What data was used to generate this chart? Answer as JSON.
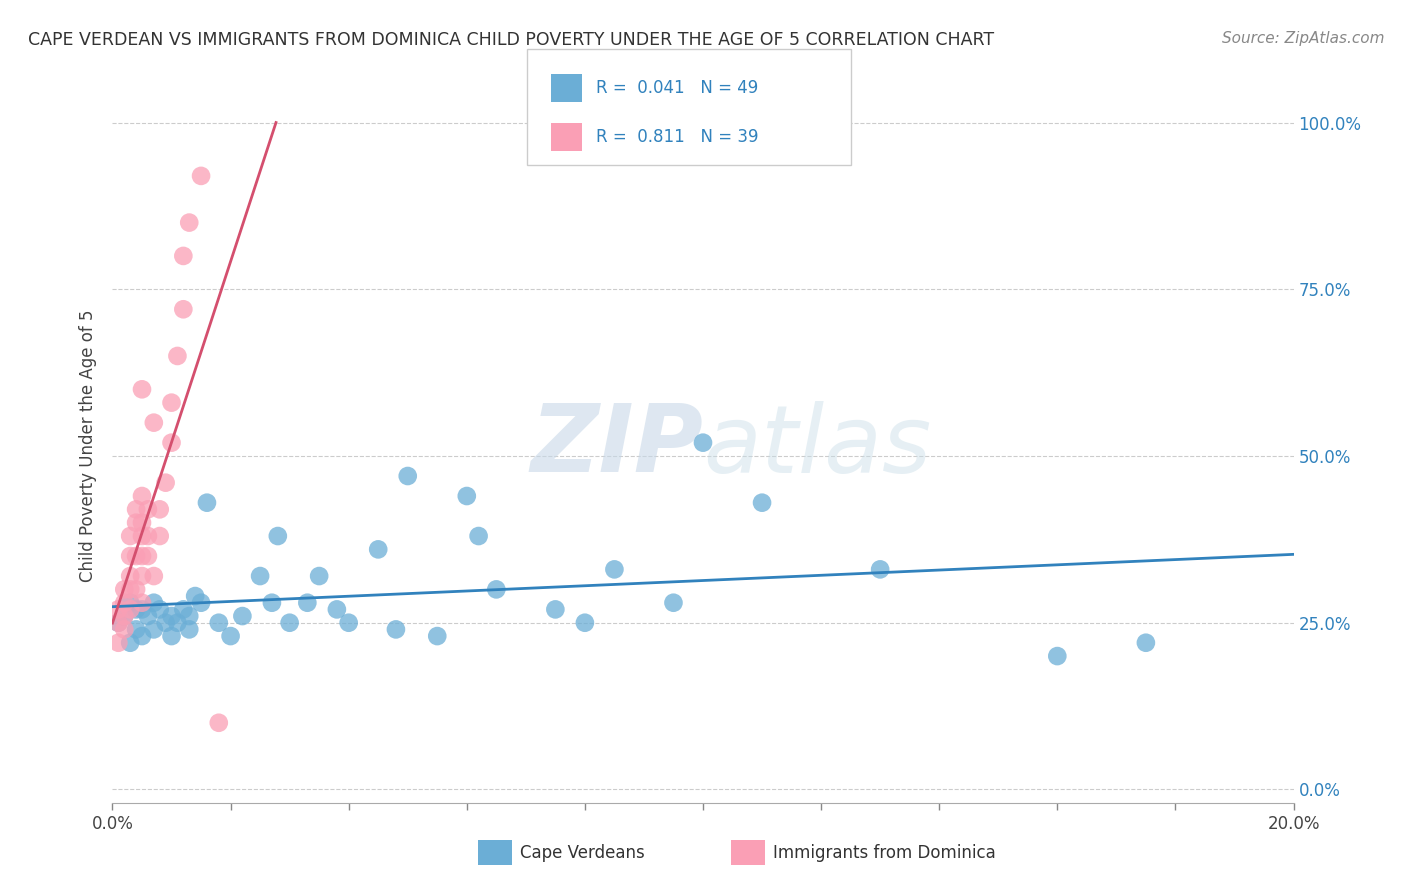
{
  "title": "CAPE VERDEAN VS IMMIGRANTS FROM DOMINICA CHILD POVERTY UNDER THE AGE OF 5 CORRELATION CHART",
  "source": "Source: ZipAtlas.com",
  "ylabel": "Child Poverty Under the Age of 5",
  "xlim": [
    0.0,
    0.2
  ],
  "ylim": [
    -0.02,
    1.05
  ],
  "ytick_values": [
    0.0,
    0.25,
    0.5,
    0.75,
    1.0
  ],
  "color_blue": "#6baed6",
  "color_pink": "#fa9fb5",
  "line_blue": "#3182bd",
  "line_pink": "#d44f6e",
  "watermark_color": "#d0dce8",
  "background_color": "#ffffff",
  "grid_color": "#cccccc",
  "blue_x": [
    0.001,
    0.002,
    0.003,
    0.003,
    0.004,
    0.004,
    0.005,
    0.005,
    0.006,
    0.007,
    0.007,
    0.008,
    0.009,
    0.01,
    0.01,
    0.011,
    0.012,
    0.013,
    0.013,
    0.014,
    0.015,
    0.016,
    0.018,
    0.02,
    0.022,
    0.025,
    0.027,
    0.028,
    0.03,
    0.033,
    0.035,
    0.038,
    0.04,
    0.045,
    0.048,
    0.05,
    0.055,
    0.06,
    0.062,
    0.065,
    0.075,
    0.08,
    0.085,
    0.095,
    0.1,
    0.11,
    0.13,
    0.16,
    0.175
  ],
  "blue_y": [
    0.25,
    0.26,
    0.28,
    0.22,
    0.27,
    0.24,
    0.27,
    0.23,
    0.26,
    0.28,
    0.24,
    0.27,
    0.25,
    0.26,
    0.23,
    0.25,
    0.27,
    0.26,
    0.24,
    0.29,
    0.28,
    0.43,
    0.25,
    0.23,
    0.26,
    0.32,
    0.28,
    0.38,
    0.25,
    0.28,
    0.32,
    0.27,
    0.25,
    0.36,
    0.24,
    0.47,
    0.23,
    0.44,
    0.38,
    0.3,
    0.27,
    0.25,
    0.33,
    0.28,
    0.52,
    0.43,
    0.33,
    0.2,
    0.22
  ],
  "pink_x": [
    0.001,
    0.001,
    0.001,
    0.002,
    0.002,
    0.002,
    0.002,
    0.003,
    0.003,
    0.003,
    0.003,
    0.003,
    0.004,
    0.004,
    0.004,
    0.004,
    0.005,
    0.005,
    0.005,
    0.005,
    0.005,
    0.005,
    0.005,
    0.006,
    0.006,
    0.006,
    0.007,
    0.007,
    0.008,
    0.008,
    0.009,
    0.01,
    0.01,
    0.011,
    0.012,
    0.012,
    0.013,
    0.015,
    0.018
  ],
  "pink_y": [
    0.22,
    0.25,
    0.27,
    0.24,
    0.28,
    0.3,
    0.26,
    0.27,
    0.3,
    0.32,
    0.35,
    0.38,
    0.3,
    0.35,
    0.4,
    0.42,
    0.28,
    0.32,
    0.35,
    0.38,
    0.4,
    0.44,
    0.6,
    0.35,
    0.38,
    0.42,
    0.55,
    0.32,
    0.38,
    0.42,
    0.46,
    0.52,
    0.58,
    0.65,
    0.72,
    0.8,
    0.85,
    0.92,
    0.1
  ]
}
